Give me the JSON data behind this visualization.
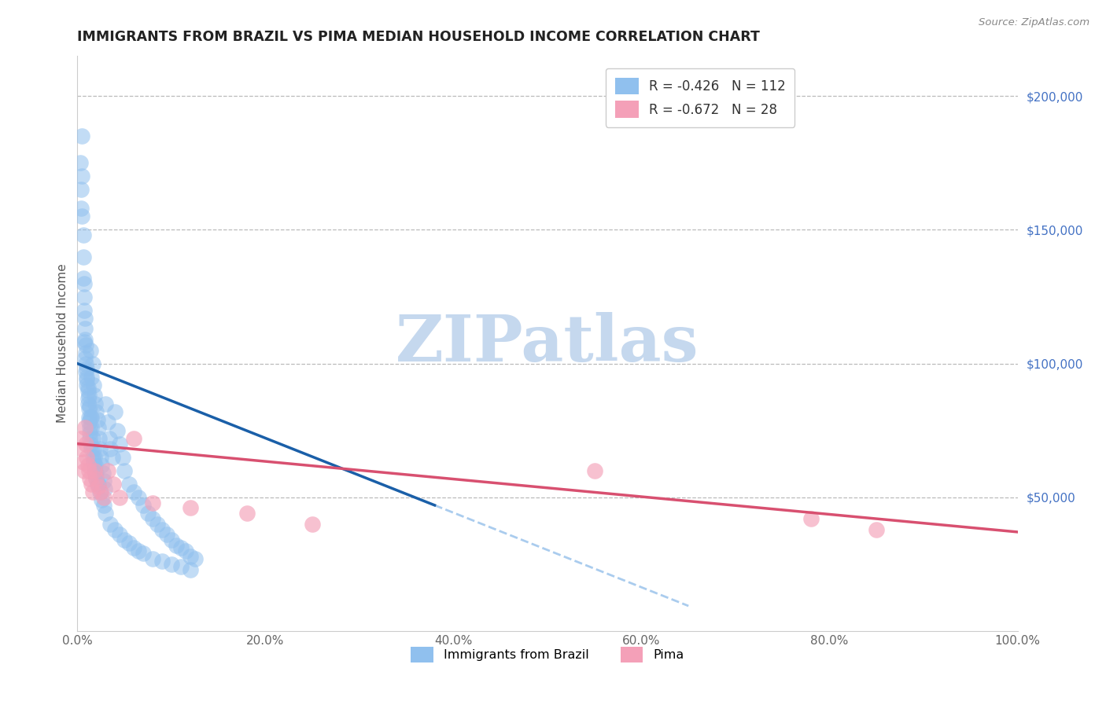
{
  "title": "IMMIGRANTS FROM BRAZIL VS PIMA MEDIAN HOUSEHOLD INCOME CORRELATION CHART",
  "source_text": "Source: ZipAtlas.com",
  "ylabel": "Median Household Income",
  "xlim": [
    0.0,
    1.0
  ],
  "ylim": [
    0,
    215000
  ],
  "right_yticks": [
    0,
    50000,
    100000,
    150000,
    200000
  ],
  "right_yticklabels": [
    "",
    "$50,000",
    "$100,000",
    "$150,000",
    "$200,000"
  ],
  "xtick_labels": [
    "0.0%",
    "20.0%",
    "40.0%",
    "60.0%",
    "80.0%",
    "100.0%"
  ],
  "xtick_positions": [
    0.0,
    0.2,
    0.4,
    0.6,
    0.8,
    1.0
  ],
  "blue_color": "#90C0EE",
  "pink_color": "#F4A0B8",
  "blue_line_color": "#1A5FA8",
  "pink_line_color": "#D85070",
  "dashed_color": "#AACCEE",
  "watermark_text": "ZIPatlas",
  "watermark_color": "#C5D8EE",
  "blue_line_x0": 0.0,
  "blue_line_x1": 0.38,
  "blue_line_y0": 100000,
  "blue_line_y1": 47000,
  "dashed_line_x0": 0.38,
  "dashed_line_x1": 0.65,
  "pink_line_x0": 0.0,
  "pink_line_x1": 1.0,
  "pink_line_y0": 70000,
  "pink_line_y1": 37000,
  "blue_scatter_x": [
    0.003,
    0.004,
    0.004,
    0.005,
    0.005,
    0.005,
    0.006,
    0.006,
    0.006,
    0.007,
    0.007,
    0.007,
    0.008,
    0.008,
    0.008,
    0.009,
    0.009,
    0.009,
    0.01,
    0.01,
    0.01,
    0.011,
    0.011,
    0.011,
    0.012,
    0.012,
    0.012,
    0.013,
    0.013,
    0.013,
    0.014,
    0.014,
    0.015,
    0.015,
    0.015,
    0.016,
    0.016,
    0.017,
    0.017,
    0.018,
    0.018,
    0.019,
    0.019,
    0.02,
    0.02,
    0.021,
    0.021,
    0.022,
    0.023,
    0.024,
    0.025,
    0.026,
    0.027,
    0.028,
    0.029,
    0.03,
    0.032,
    0.034,
    0.035,
    0.037,
    0.04,
    0.042,
    0.045,
    0.048,
    0.05,
    0.055,
    0.06,
    0.065,
    0.07,
    0.075,
    0.08,
    0.085,
    0.09,
    0.095,
    0.1,
    0.105,
    0.11,
    0.115,
    0.12,
    0.125,
    0.007,
    0.008,
    0.009,
    0.01,
    0.011,
    0.012,
    0.013,
    0.014,
    0.015,
    0.016,
    0.017,
    0.018,
    0.019,
    0.02,
    0.022,
    0.024,
    0.026,
    0.028,
    0.03,
    0.035,
    0.04,
    0.045,
    0.05,
    0.055,
    0.06,
    0.065,
    0.07,
    0.08,
    0.09,
    0.1,
    0.11,
    0.12
  ],
  "blue_scatter_y": [
    175000,
    165000,
    158000,
    185000,
    170000,
    155000,
    148000,
    140000,
    132000,
    130000,
    125000,
    120000,
    117000,
    113000,
    109000,
    107000,
    104000,
    100000,
    98000,
    95000,
    92000,
    90000,
    87000,
    85000,
    83000,
    80000,
    78000,
    76000,
    74000,
    72000,
    105000,
    70000,
    95000,
    80000,
    68000,
    100000,
    65000,
    92000,
    63000,
    88000,
    61000,
    85000,
    59000,
    82000,
    57000,
    79000,
    55000,
    76000,
    72000,
    68000,
    65000,
    62000,
    59000,
    56000,
    53000,
    85000,
    78000,
    72000,
    68000,
    65000,
    82000,
    75000,
    70000,
    65000,
    60000,
    55000,
    52000,
    50000,
    47000,
    44000,
    42000,
    40000,
    38000,
    36000,
    34000,
    32000,
    31000,
    30000,
    28000,
    27000,
    108000,
    102000,
    97000,
    94000,
    91000,
    88000,
    84000,
    80000,
    76000,
    72000,
    68000,
    65000,
    62000,
    59000,
    55000,
    52000,
    49000,
    47000,
    44000,
    40000,
    38000,
    36000,
    34000,
    33000,
    31000,
    30000,
    29000,
    27000,
    26000,
    25000,
    24000,
    23000
  ],
  "pink_scatter_x": [
    0.004,
    0.005,
    0.006,
    0.007,
    0.008,
    0.009,
    0.01,
    0.011,
    0.012,
    0.013,
    0.015,
    0.016,
    0.018,
    0.02,
    0.022,
    0.025,
    0.028,
    0.032,
    0.038,
    0.045,
    0.06,
    0.08,
    0.12,
    0.18,
    0.25,
    0.55,
    0.78,
    0.85
  ],
  "pink_scatter_y": [
    72000,
    68000,
    63000,
    60000,
    76000,
    70000,
    65000,
    62000,
    60000,
    57000,
    55000,
    52000,
    60000,
    57000,
    54000,
    52000,
    50000,
    60000,
    55000,
    50000,
    72000,
    48000,
    46000,
    44000,
    40000,
    60000,
    42000,
    38000
  ]
}
